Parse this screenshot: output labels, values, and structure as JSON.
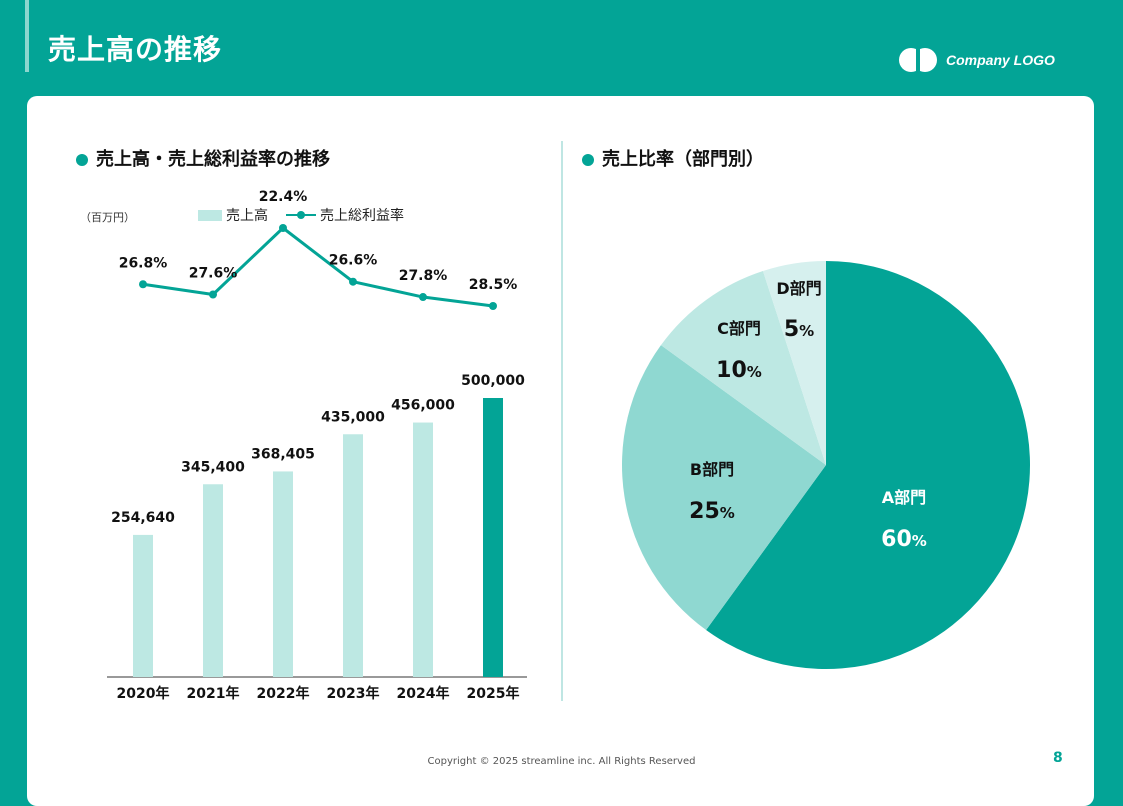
{
  "page": {
    "title": "売上高の推移",
    "logo_text": "Company LOGO",
    "copyright": "Copyright © 2025 streamline inc. All Rights Reserved",
    "page_number": "8"
  },
  "colors": {
    "accent": "#03a496",
    "bar_light": "#bde8e3",
    "bar_highlight": "#03a496",
    "pie_a": "#03a496",
    "pie_b": "#8fd8d1",
    "pie_c": "#bde8e3",
    "pie_d": "#d6f0ee"
  },
  "left_section": {
    "title": "売上高・売上総利益率の推移",
    "unit": "（百万円）",
    "legend_bar": "売上高",
    "legend_line": "売上総利益率"
  },
  "right_section": {
    "title": "売上比率（部門別）"
  },
  "chart_data": [
    {
      "type": "bar",
      "categories": [
        "2020年",
        "2021年",
        "2022年",
        "2023年",
        "2024年",
        "2025年"
      ],
      "series": [
        {
          "name": "売上高",
          "values": [
            254640,
            345400,
            368405,
            435000,
            456000,
            500000
          ],
          "labels": [
            "254,640",
            "345,400",
            "368,405",
            "435,000",
            "456,000",
            "500,000"
          ]
        },
        {
          "name": "売上総利益率",
          "type": "line",
          "values": [
            26.8,
            27.6,
            22.4,
            26.6,
            27.8,
            28.5
          ],
          "labels": [
            "26.8%",
            "27.6%",
            "22.4%",
            "26.6%",
            "27.8%",
            "28.5%"
          ]
        }
      ],
      "ylabel": "（百万円）",
      "highlight_index": 5,
      "legend": "top"
    },
    {
      "type": "pie",
      "categories": [
        "A部門",
        "B部門",
        "C部門",
        "D部門"
      ],
      "values": [
        60,
        25,
        10,
        5
      ],
      "value_suffix": "%"
    }
  ]
}
